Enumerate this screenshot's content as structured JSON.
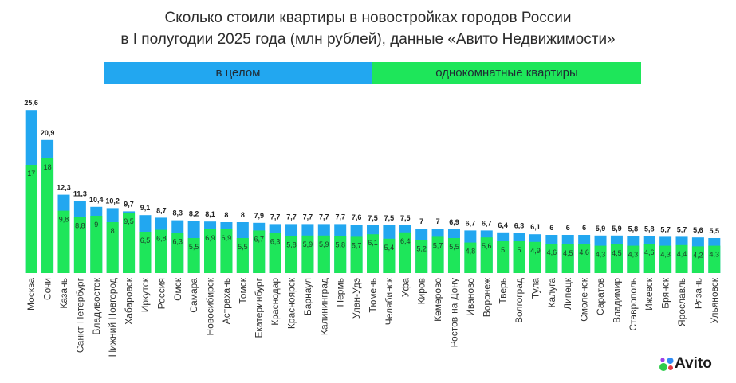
{
  "header": {
    "title_line1": "Сколько стоили квартиры в новостройках городов России",
    "title_line2": "в I полугодии 2025 года (млн рублей), данные «Авито Недвижимости»"
  },
  "legend": {
    "overall": "в целом",
    "one_room": "однокомнатные квартиры"
  },
  "brand": {
    "name": "Avito",
    "colors": {
      "overall": "#22a7f0",
      "one_room": "#1ee65a"
    }
  },
  "chart_data": {
    "type": "bar",
    "title": "Сколько стоили квартиры в новостройках городов России в I полугодии 2025 года (млн рублей), данные «Авито Недвижимости»",
    "ylim": [
      0,
      26
    ],
    "grid": false,
    "legend_position": "top",
    "categories": [
      "Москва",
      "Сочи",
      "Казань",
      "Санкт-Петербург",
      "Владивосток",
      "Нижний Новгород",
      "Хабаровск",
      "Иркутск",
      "Россия",
      "Омск",
      "Самара",
      "Новосибирск",
      "Астрахань",
      "Томск",
      "Екатеринбург",
      "Краснодар",
      "Красноярск",
      "Барнаул",
      "Калининград",
      "Пермь",
      "Улан-Удэ",
      "Тюмень",
      "Челябинск",
      "Уфа",
      "Киров",
      "Кемерово",
      "Ростов-на-Дону",
      "Иваново",
      "Воронеж",
      "Тверь",
      "Волгоград",
      "Тула",
      "Калуга",
      "Липецк",
      "Смоленск",
      "Саратов",
      "Владимир",
      "Ставрополь",
      "Ижевск",
      "Брянск",
      "Ярославль",
      "Рязань",
      "Ульяновск"
    ],
    "series": [
      {
        "name": "в целом",
        "values": [
          25.6,
          20.9,
          12.3,
          11.3,
          10.4,
          10.2,
          9.7,
          9.1,
          8.7,
          8.3,
          8.2,
          8.1,
          8,
          8,
          7.9,
          7.7,
          7.7,
          7.7,
          7.7,
          7.7,
          7.6,
          7.5,
          7.5,
          7.5,
          7,
          7,
          6.9,
          6.7,
          6.7,
          6.4,
          6.3,
          6.1,
          6,
          6,
          6,
          5.9,
          5.9,
          5.8,
          5.8,
          5.7,
          5.7,
          5.6,
          5.5
        ],
        "labels": [
          "25,6",
          "20,9",
          "12,3",
          "11,3",
          "10,4",
          "10,2",
          "9,7",
          "9,1",
          "8,7",
          "8,3",
          "8,2",
          "8,1",
          "8",
          "8",
          "7,9",
          "7,7",
          "7,7",
          "7,7",
          "7,7",
          "7,7",
          "7,6",
          "7,5",
          "7,5",
          "7,5",
          "7",
          "7",
          "6,9",
          "6,7",
          "6,7",
          "6,4",
          "6,3",
          "6,1",
          "6",
          "6",
          "6",
          "5,9",
          "5,9",
          "5,8",
          "5,8",
          "5,7",
          "5,7",
          "5,6",
          "5,5"
        ]
      },
      {
        "name": "однокомнатные квартиры",
        "values": [
          17,
          18,
          9.8,
          8.8,
          9,
          8,
          9.5,
          6.5,
          6.8,
          6.3,
          5.5,
          6.9,
          6.9,
          5.5,
          6.7,
          6.3,
          5.8,
          5.9,
          5.9,
          5.8,
          5.7,
          6.1,
          5.4,
          6.4,
          5.2,
          5.7,
          5.5,
          4.8,
          5.6,
          5,
          5,
          4.9,
          4.6,
          4.5,
          4.6,
          4.3,
          4.5,
          4.3,
          4.6,
          4.3,
          4.4,
          4.2,
          4.3
        ],
        "labels": [
          "17",
          "18",
          "9,8",
          "8,8",
          "9",
          "8",
          "9,5",
          "6,5",
          "6,8",
          "6,3",
          "5,5",
          "6,9",
          "6,9",
          "5,5",
          "6,7",
          "6,3",
          "5,8",
          "5,9",
          "5,9",
          "5,8",
          "5,7",
          "6,1",
          "5,4",
          "6,4",
          "5,2",
          "5,7",
          "5,5",
          "4,8",
          "5,6",
          "5",
          "5",
          "4,9",
          "4,6",
          "4,5",
          "4,6",
          "4,3",
          "4,5",
          "4,3",
          "4,6",
          "4,3",
          "4,4",
          "4,2",
          "4,3"
        ]
      }
    ]
  }
}
